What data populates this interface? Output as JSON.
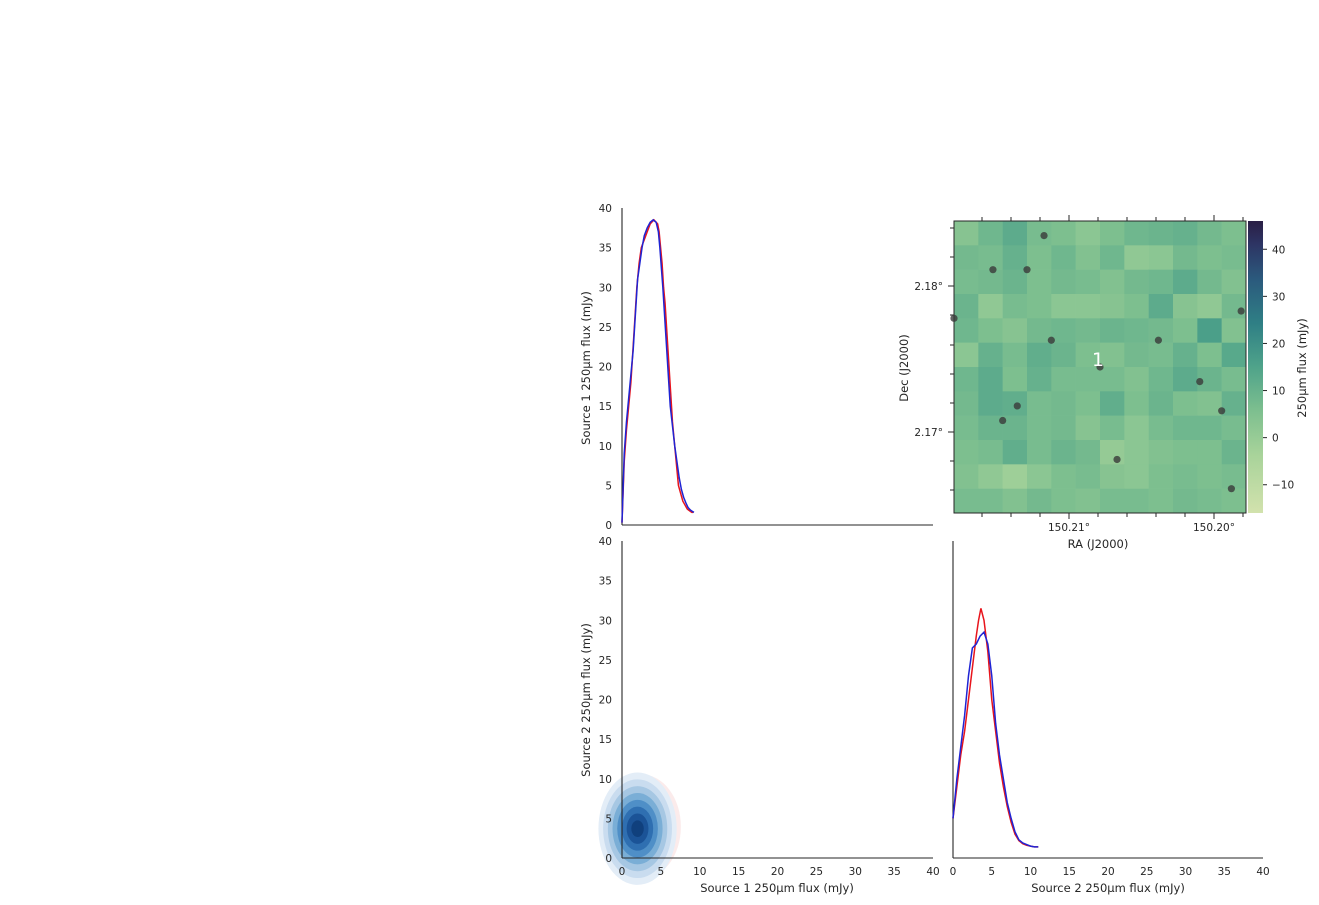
{
  "chart_data": [
    {
      "type": "line",
      "panel": "top-left",
      "title": "",
      "xlabel": "",
      "ylabel": "Source 1 250μm flux  (mJy)",
      "xlim": [
        0,
        40
      ],
      "ylim": [
        0,
        40
      ],
      "yticks": [
        "0",
        "5",
        "10",
        "15",
        "20",
        "25",
        "30",
        "35",
        "40"
      ],
      "series": [
        {
          "color": "#e8141c",
          "x": [
            0.3,
            8,
            12,
            15,
            18,
            21,
            24,
            27,
            30,
            33,
            35,
            36,
            37,
            38,
            38.5,
            38,
            37,
            35,
            33,
            30,
            28,
            25,
            22,
            19,
            16,
            13,
            11,
            9,
            7,
            5,
            4,
            3,
            2.5,
            2,
            1.8,
            1.6,
            1.6
          ],
          "y": [
            0,
            0.3,
            0.6,
            0.9,
            1.2,
            1.4,
            1.6,
            1.8,
            2.0,
            2.3,
            2.6,
            3.0,
            3.4,
            3.8,
            4.3,
            4.8,
            5.0,
            5.2,
            5.4,
            5.6,
            5.8,
            6.0,
            6.2,
            6.4,
            6.6,
            6.8,
            7.0,
            7.2,
            7.4,
            7.6,
            7.9,
            8.2,
            8.5,
            8.8,
            9.1,
            9.4,
            9.6
          ]
        },
        {
          "color": "#1f24d4",
          "x": [
            0.3,
            9,
            13,
            16,
            19,
            22,
            25,
            28,
            31,
            33,
            35,
            36.5,
            37.5,
            38.2,
            38.5,
            38.2,
            37,
            35,
            32.5,
            30,
            27,
            24,
            21,
            18,
            15,
            12.5,
            10,
            8,
            6,
            4.5,
            3.5,
            2.8,
            2.2,
            1.9,
            1.7,
            1.6
          ],
          "y": [
            0,
            0.3,
            0.6,
            0.9,
            1.2,
            1.5,
            1.7,
            1.9,
            2.1,
            2.4,
            2.7,
            3.0,
            3.4,
            3.8,
            4.2,
            4.6,
            4.9,
            5.1,
            5.3,
            5.5,
            5.7,
            5.9,
            6.1,
            6.3,
            6.5,
            6.8,
            7.1,
            7.4,
            7.7,
            8.0,
            8.3,
            8.6,
            8.9,
            9.2,
            9.5,
            9.7
          ]
        }
      ]
    },
    {
      "type": "heatmap",
      "panel": "top-right",
      "title": "",
      "xlabel": "RA (J2000)",
      "ylabel": "Dec (J2000)",
      "xticks": [
        "150.21°",
        "150.20°"
      ],
      "yticks": [
        "2.18°",
        "2.17°"
      ],
      "colorbar": {
        "label": "250μm flux  (mJy)",
        "ticks": [
          "−10",
          "0",
          "10",
          "20",
          "30",
          "40"
        ],
        "range": [
          -16,
          46
        ],
        "colormap": "crest"
      },
      "annotation": "1",
      "grid_values": [
        [
          3,
          8,
          12,
          6,
          5,
          2,
          5,
          8,
          9,
          10,
          7,
          5
        ],
        [
          7,
          6,
          10,
          5,
          8,
          4,
          8,
          1,
          2,
          7,
          5,
          6
        ],
        [
          6,
          7,
          9,
          5,
          7,
          6,
          4,
          7,
          8,
          12,
          7,
          4
        ],
        [
          9,
          1,
          6,
          5,
          2,
          2,
          3,
          5,
          12,
          3,
          1,
          7
        ],
        [
          8,
          5,
          3,
          7,
          8,
          7,
          9,
          8,
          7,
          5,
          16,
          4
        ],
        [
          2,
          10,
          6,
          11,
          9,
          5,
          4,
          7,
          6,
          10,
          5,
          13
        ],
        [
          8,
          12,
          5,
          10,
          6,
          6,
          6,
          4,
          8,
          12,
          9,
          6
        ],
        [
          7,
          12,
          11,
          6,
          7,
          5,
          11,
          5,
          9,
          5,
          4,
          10
        ],
        [
          6,
          9,
          9,
          6,
          7,
          3,
          6,
          2,
          6,
          8,
          8,
          6
        ],
        [
          5,
          6,
          11,
          6,
          9,
          7,
          0,
          2,
          4,
          5,
          5,
          9
        ],
        [
          4,
          1,
          -2,
          2,
          5,
          6,
          3,
          2,
          5,
          6,
          5,
          6
        ],
        [
          6,
          6,
          4,
          7,
          5,
          4,
          6,
          6,
          5,
          7,
          6,
          5
        ]
      ],
      "sources": [
        [
          3.7,
          0.6
        ],
        [
          1.6,
          2.0
        ],
        [
          3.0,
          2.0
        ],
        [
          0,
          4.0
        ],
        [
          4.0,
          4.9
        ],
        [
          8.4,
          4.9
        ],
        [
          11.8,
          3.7
        ],
        [
          6.0,
          6.0
        ],
        [
          10.1,
          6.6
        ],
        [
          2.6,
          7.6
        ],
        [
          2.0,
          8.2
        ],
        [
          11.0,
          7.8
        ],
        [
          6.7,
          9.8
        ],
        [
          11.4,
          11.0
        ]
      ]
    },
    {
      "type": "heatmap",
      "panel": "bottom-left",
      "title": "",
      "xlabel": "Source 1 250μm flux  (mJy)",
      "ylabel": "Source 2 250μm flux (mJy)",
      "xlim": [
        0,
        40
      ],
      "ylim": [
        0,
        40
      ],
      "xticks": [
        "0",
        "5",
        "10",
        "15",
        "20",
        "25",
        "30",
        "35",
        "40"
      ],
      "yticks": [
        "0",
        "5",
        "10",
        "15",
        "20",
        "25",
        "30",
        "35",
        "40"
      ],
      "kde_center": [
        2.0,
        3.7
      ],
      "kde_spread": [
        2.2,
        3.0
      ]
    },
    {
      "type": "line",
      "panel": "bottom-right",
      "title": "",
      "xlabel": "Source 2 250μm flux (mJy)",
      "ylabel": "",
      "xlim": [
        0,
        40
      ],
      "xticks": [
        "0",
        "5",
        "10",
        "15",
        "20",
        "25",
        "30",
        "35",
        "40"
      ],
      "series": [
        {
          "color": "#e8141c",
          "x": [
            0,
            0.5,
            1,
            1.5,
            2,
            2.5,
            3,
            3.3,
            3.6,
            4,
            4.5,
            5,
            5.5,
            6,
            6.5,
            7,
            7.5,
            8,
            8.5,
            9,
            9.5,
            10,
            10.5,
            11
          ],
          "y": [
            5,
            9,
            13,
            16,
            20,
            24,
            28,
            30,
            31.5,
            30,
            26,
            20,
            16,
            12,
            9,
            6.5,
            4.5,
            3,
            2.2,
            1.8,
            1.6,
            1.5,
            1.4,
            1.4
          ]
        },
        {
          "color": "#1f24d4",
          "x": [
            0,
            0.5,
            1,
            1.5,
            2,
            2.5,
            3,
            3.5,
            4,
            4.5,
            5,
            5.5,
            6,
            6.5,
            7,
            7.5,
            8,
            8.5,
            9,
            9.5,
            10,
            10.5,
            11
          ],
          "y": [
            5,
            10,
            14,
            18,
            23,
            26.5,
            27,
            28,
            28.5,
            27,
            23,
            17,
            13,
            10,
            7,
            5,
            3.3,
            2.3,
            1.9,
            1.7,
            1.5,
            1.4,
            1.4
          ]
        }
      ]
    }
  ]
}
